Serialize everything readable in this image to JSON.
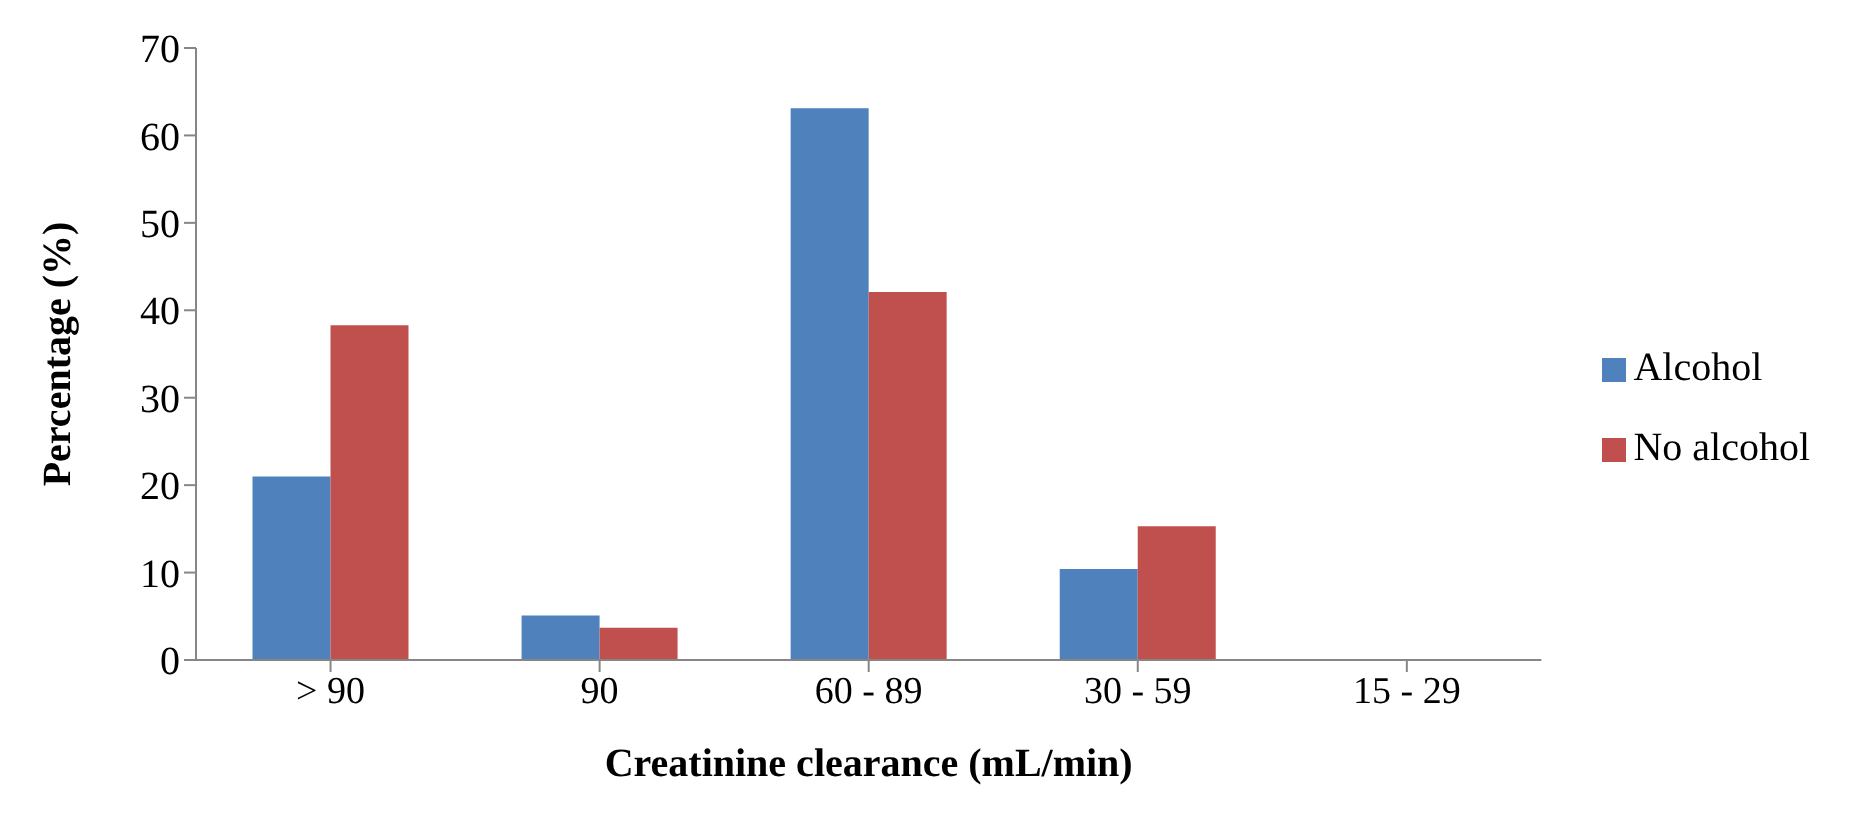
{
  "chart_data": {
    "type": "bar",
    "xlabel": "Creatinine clearance (mL/min)",
    "ylabel": "Percentage (%)",
    "categories": [
      "> 90",
      "90",
      "60 - 89",
      "30 - 59",
      "15 - 29"
    ],
    "series": [
      {
        "name": "Alcohol",
        "color": "#4f81bd",
        "values": [
          21,
          5.1,
          63.1,
          10.4,
          0
        ]
      },
      {
        "name": "No alcohol",
        "color": "#c0504d",
        "values": [
          38.3,
          3.7,
          42.1,
          15.3,
          0
        ]
      }
    ],
    "ylim": [
      0,
      70
    ],
    "yticks": [
      0,
      10,
      20,
      30,
      40,
      50,
      60,
      70
    ],
    "grid": false,
    "legend": "right"
  }
}
